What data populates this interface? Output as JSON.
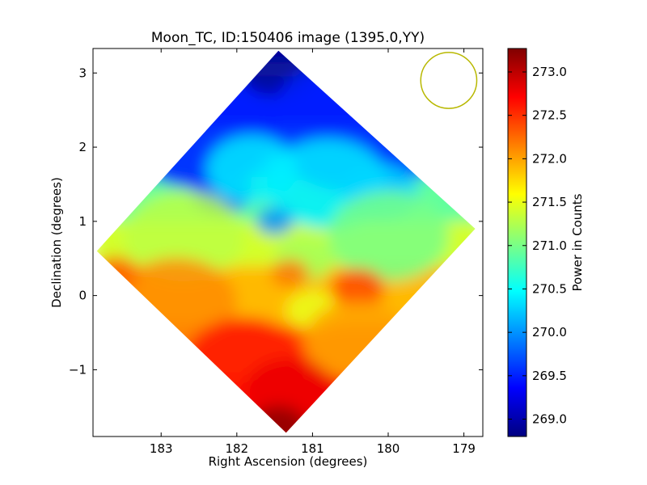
{
  "chart_data": {
    "type": "heatmap",
    "title": "Moon_TC, ID:150406 image (1395.0,YY)",
    "xlabel": "Right Ascension (degrees)",
    "ylabel": "Declination (degrees)",
    "xlim": [
      183.9,
      178.75
    ],
    "ylim": [
      -1.9,
      3.33
    ],
    "x_ticks": [
      183,
      182,
      181,
      180,
      179
    ],
    "x_tick_labels": [
      "183",
      "182",
      "181",
      "180",
      "179"
    ],
    "y_ticks": [
      -1,
      0,
      1,
      2,
      3
    ],
    "y_tick_labels": [
      "−1",
      "0",
      "1",
      "2",
      "3"
    ],
    "colorbar": {
      "label": "Power in Counts",
      "range": [
        268.8,
        273.27
      ],
      "ticks": [
        269.0,
        269.5,
        270.0,
        270.5,
        271.0,
        271.5,
        272.0,
        272.5,
        273.0
      ],
      "tick_labels": [
        "269.0",
        "269.5",
        "270.0",
        "270.5",
        "271.0",
        "271.5",
        "272.0",
        "272.5",
        "273.0"
      ],
      "colormap": "jet"
    },
    "footprint": {
      "shape": "diamond",
      "vertices_ra_dec": [
        [
          181.45,
          3.3
        ],
        [
          178.85,
          0.9
        ],
        [
          181.35,
          -1.85
        ],
        [
          183.85,
          0.6
        ]
      ]
    },
    "regions": [
      {
        "ra": 181.45,
        "dec": 3.1,
        "value": 268.9,
        "radius_deg": 0.55
      },
      {
        "ra": 180.4,
        "dec": 2.3,
        "value": 269.5,
        "radius_deg": 1.2
      },
      {
        "ra": 182.5,
        "dec": 2.2,
        "value": 269.5,
        "radius_deg": 1.0
      },
      {
        "ra": 182.2,
        "dec": 1.4,
        "value": 269.6,
        "radius_deg": 0.4
      },
      {
        "ra": 180.8,
        "dec": 1.5,
        "value": 270.4,
        "radius_deg": 0.8
      },
      {
        "ra": 181.8,
        "dec": 1.7,
        "value": 270.4,
        "radius_deg": 0.6
      },
      {
        "ra": 181.5,
        "dec": 1.0,
        "value": 270.0,
        "radius_deg": 0.25
      },
      {
        "ra": 180.1,
        "dec": 1.4,
        "value": 270.3,
        "radius_deg": 0.5
      },
      {
        "ra": 182.7,
        "dec": 0.8,
        "value": 271.3,
        "radius_deg": 0.8
      },
      {
        "ra": 180.0,
        "dec": 0.8,
        "value": 271.0,
        "radius_deg": 0.8
      },
      {
        "ra": 181.1,
        "dec": 0.5,
        "value": 271.2,
        "radius_deg": 0.4
      },
      {
        "ra": 181.3,
        "dec": 0.3,
        "value": 272.2,
        "radius_deg": 0.25
      },
      {
        "ra": 180.4,
        "dec": 0.1,
        "value": 272.4,
        "radius_deg": 0.35
      },
      {
        "ra": 182.8,
        "dec": -0.1,
        "value": 272.1,
        "radius_deg": 0.8
      },
      {
        "ra": 181.0,
        "dec": -0.2,
        "value": 271.5,
        "radius_deg": 0.35
      },
      {
        "ra": 183.6,
        "dec": 0.3,
        "value": 272.3,
        "radius_deg": 0.3
      },
      {
        "ra": 180.4,
        "dec": -0.6,
        "value": 272.0,
        "radius_deg": 0.7
      },
      {
        "ra": 181.9,
        "dec": -0.9,
        "value": 272.6,
        "radius_deg": 0.8
      },
      {
        "ra": 181.3,
        "dec": -1.3,
        "value": 272.8,
        "radius_deg": 0.6
      },
      {
        "ra": 181.45,
        "dec": -1.75,
        "value": 273.2,
        "radius_deg": 0.35
      }
    ],
    "beam_circle": {
      "ra": 179.2,
      "dec": 2.9,
      "radius_deg": 0.37,
      "color": "#b8b800"
    }
  }
}
